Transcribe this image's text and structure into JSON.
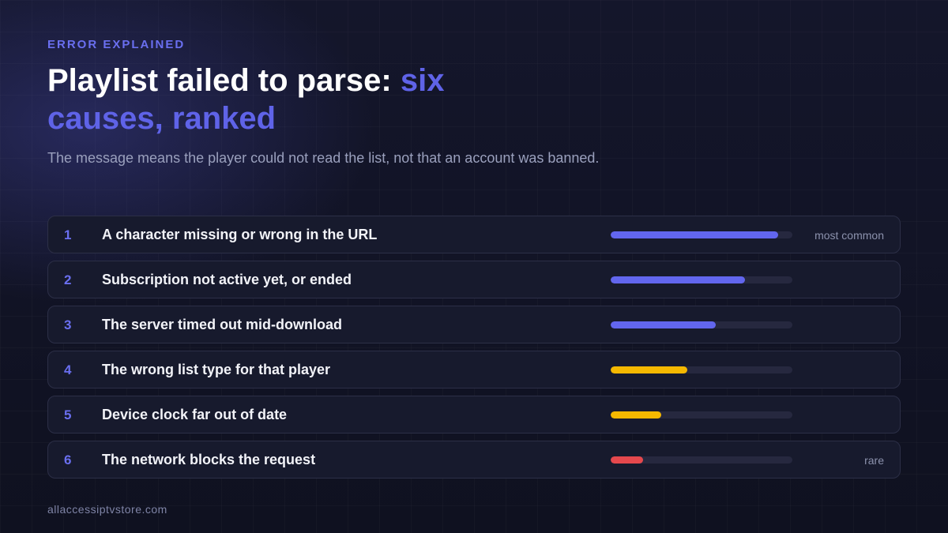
{
  "eyebrow": "ERROR EXPLAINED",
  "title": {
    "main": "Playlist failed to parse:",
    "accent_line1": "six",
    "accent_line2": "causes, ranked"
  },
  "subtitle": "The message means the player could not read the list, not that an account was banned.",
  "causes": [
    {
      "rank": "1",
      "label": "A character missing or wrong in the URL",
      "likelihood": 0.92,
      "color": "#6266ee",
      "note": "most common"
    },
    {
      "rank": "2",
      "label": "Subscription not active yet, or ended",
      "likelihood": 0.74,
      "color": "#6266ee",
      "note": ""
    },
    {
      "rank": "3",
      "label": "The server timed out mid-download",
      "likelihood": 0.58,
      "color": "#6266ee",
      "note": ""
    },
    {
      "rank": "4",
      "label": "The wrong list type for that player",
      "likelihood": 0.42,
      "color": "#f5b800",
      "note": ""
    },
    {
      "rank": "5",
      "label": "Device clock far out of date",
      "likelihood": 0.28,
      "color": "#f5b800",
      "note": ""
    },
    {
      "rank": "6",
      "label": "The network blocks the request",
      "likelihood": 0.18,
      "color": "#e5484d",
      "note": "rare"
    }
  ],
  "footer": "allaccessiptvstore.com"
}
